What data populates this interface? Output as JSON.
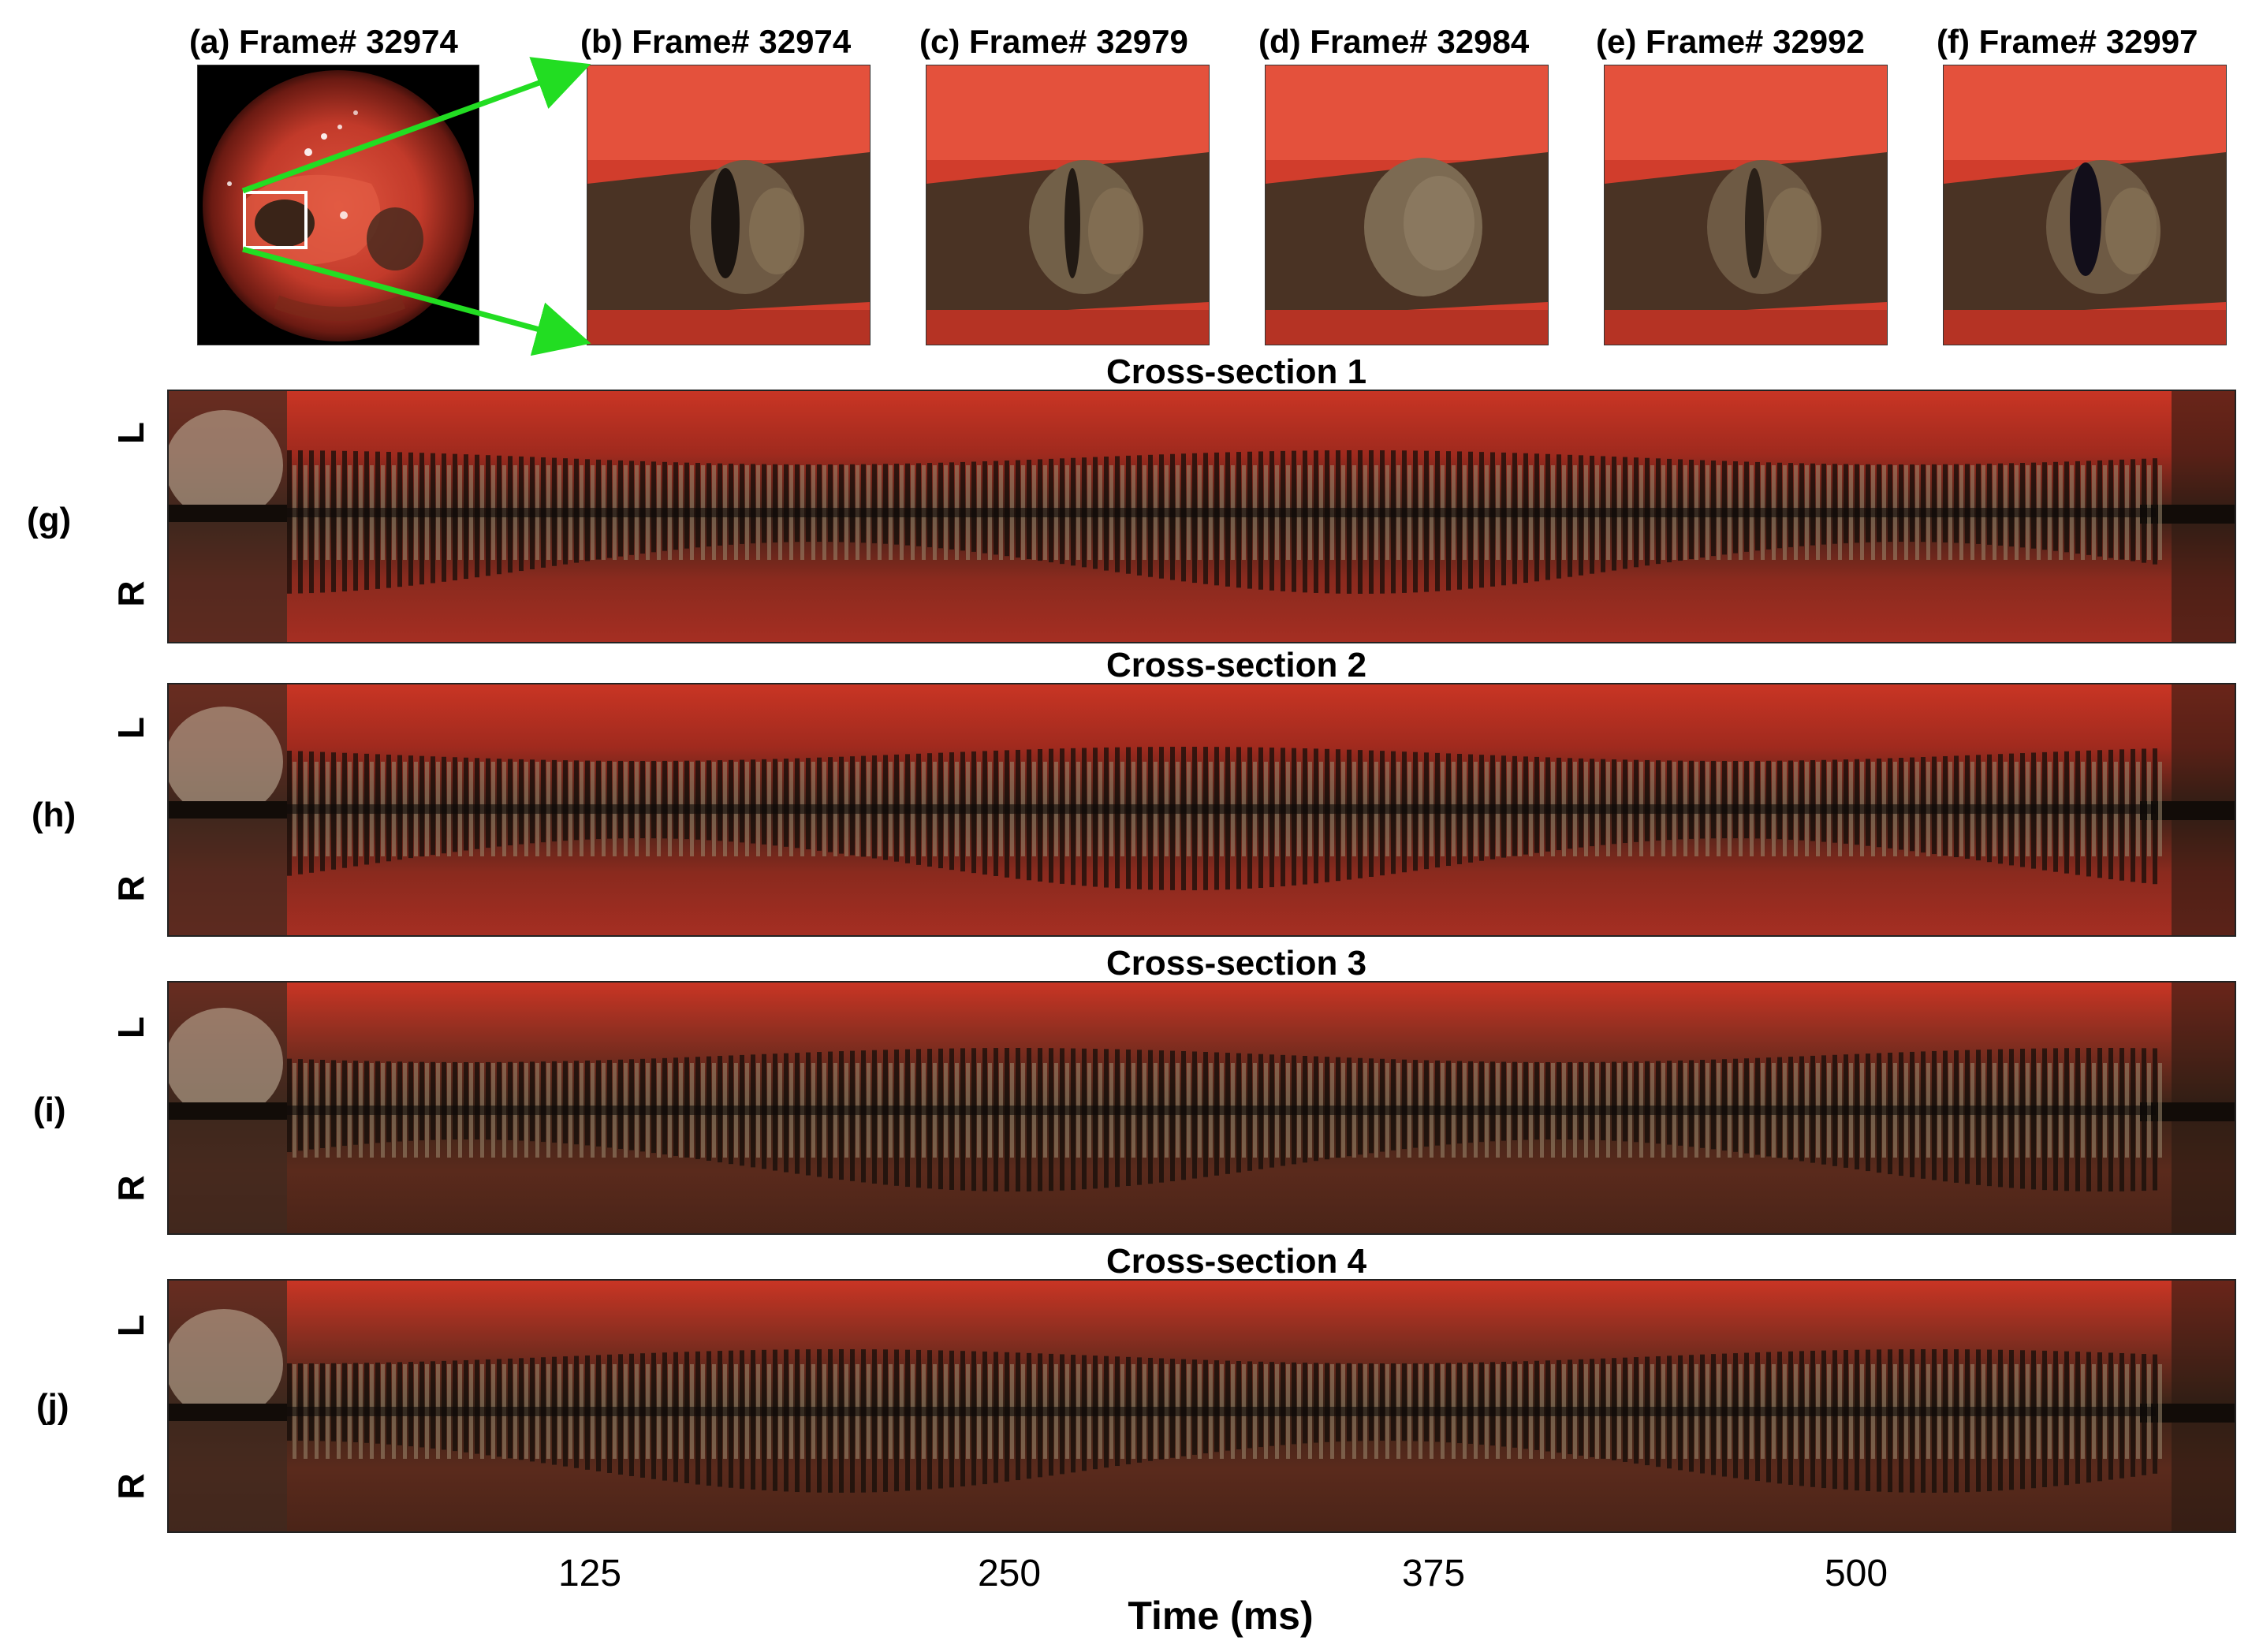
{
  "top_panels": [
    {
      "label": "(a) Frame# 32974"
    },
    {
      "label": "(b) Frame# 32974"
    },
    {
      "label": "(c) Frame# 32979"
    },
    {
      "label": "(d) Frame# 32984"
    },
    {
      "label": "(e) Frame# 32992"
    },
    {
      "label": "(f) Frame# 32997"
    }
  ],
  "kymographs": [
    {
      "panel": "(g)",
      "title": "Cross-section  1",
      "top": "L",
      "bottom": "R"
    },
    {
      "panel": "(h)",
      "title": "Cross-section  2",
      "top": "L",
      "bottom": "R"
    },
    {
      "panel": "(i)",
      "title": "Cross-section  3",
      "top": "L",
      "bottom": "R"
    },
    {
      "panel": "(j)",
      "title": "Cross-section  4",
      "top": "L",
      "bottom": "R"
    }
  ],
  "x_axis": {
    "title": "Time (ms)",
    "ticks": [
      "125",
      "250",
      "375",
      "500"
    ]
  },
  "colors": {
    "tissue": "#c9382a",
    "tissue_dark": "#5a2418",
    "glottis_dark": "#1a120c",
    "fold_light": "#b8a890",
    "zoom_arrow": "#22dd22",
    "roi_box": "#ffffff"
  }
}
